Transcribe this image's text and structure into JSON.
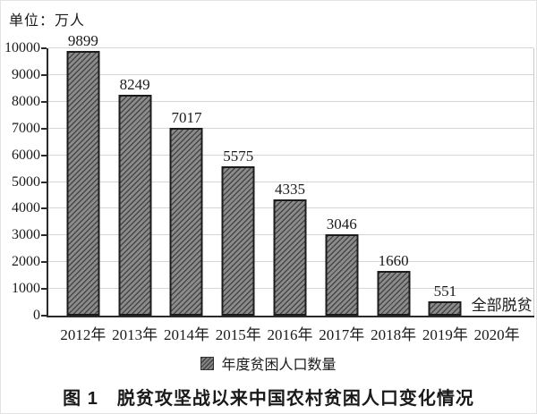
{
  "unit_label": "单位：万人",
  "legend": {
    "label": "年度贫困人口数量"
  },
  "caption": "图 1　脱贫攻坚战以来中国农村贫困人口变化情况",
  "colors": {
    "bar_fill_base": "#8b8b8b",
    "bar_hatch": "#474747",
    "bar_border": "#1c1c1c",
    "axis": "#2a2a2a",
    "gridline": "#d6d6d6",
    "text": "#1a1a1a"
  },
  "chart_data": {
    "type": "bar",
    "title": "图 1　脱贫攻坚战以来中国农村贫困人口变化情况",
    "unit": "单位：万人",
    "categories": [
      "2012年",
      "2013年",
      "2014年",
      "2015年",
      "2016年",
      "2017年",
      "2018年",
      "2019年",
      "2020年"
    ],
    "series": [
      {
        "name": "年度贫困人口数量",
        "values": [
          9899,
          8249,
          7017,
          5575,
          4335,
          3046,
          1660,
          551,
          null
        ]
      }
    ],
    "annotations": [
      {
        "category": "2020年",
        "text": "全部脱贫"
      }
    ],
    "xlabel": "",
    "ylabel": "单位：万人",
    "ylim": [
      0,
      10000
    ],
    "ytick_step": 1000,
    "grid": true,
    "bar_style": "diagonal-hatch",
    "legend_position": "bottom"
  }
}
